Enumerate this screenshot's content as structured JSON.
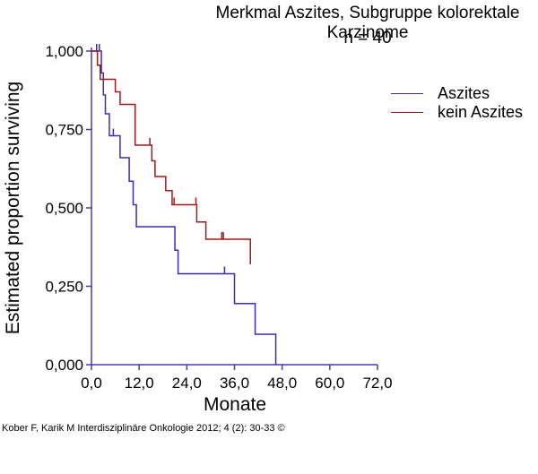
{
  "chart_data": {
    "type": "line",
    "subtype": "kaplan-meier step",
    "title": "Merkmal Aszites, Subgruppe kolorektale Karzinome",
    "subtitle": "n = 40",
    "xlabel": "Monate",
    "ylabel": "Estimated proportion surviving",
    "xlim": [
      0,
      72
    ],
    "ylim": [
      0,
      1
    ],
    "x_ticks": [
      "0,0",
      "12,0",
      "24,0",
      "36,0",
      "48,0",
      "60,0",
      "72,0"
    ],
    "y_ticks": [
      "0,000",
      "0,250",
      "0,500",
      "0,750",
      "1,000"
    ],
    "grid": false,
    "legend_position": "upper right",
    "series": [
      {
        "name": "Aszites",
        "color": "#3a2fb0",
        "steps": [
          [
            0,
            1.0
          ],
          [
            2.5,
            0.93
          ],
          [
            3.0,
            0.86
          ],
          [
            3.5,
            0.8
          ],
          [
            4.5,
            0.73
          ],
          [
            7.2,
            0.66
          ],
          [
            9.5,
            0.585
          ],
          [
            10.5,
            0.51
          ],
          [
            11.3,
            0.44
          ],
          [
            21.0,
            0.365
          ],
          [
            21.8,
            0.29
          ],
          [
            36.0,
            0.195
          ],
          [
            41.2,
            0.097
          ],
          [
            46.4,
            0.0
          ]
        ],
        "censored": [
          [
            1.3,
            1.0
          ],
          [
            2.0,
            1.0
          ],
          [
            5.5,
            0.73
          ],
          [
            33.5,
            0.29
          ]
        ]
      },
      {
        "name": "kein Aszites",
        "color": "#a01818",
        "steps": [
          [
            0,
            1.0
          ],
          [
            1.5,
            0.955
          ],
          [
            2.2,
            0.91
          ],
          [
            6.0,
            0.87
          ],
          [
            7.2,
            0.83
          ],
          [
            11.0,
            0.7
          ],
          [
            15.2,
            0.65
          ],
          [
            16.0,
            0.6
          ],
          [
            18.7,
            0.555
          ],
          [
            20.3,
            0.51
          ],
          [
            26.5,
            0.455
          ],
          [
            28.8,
            0.4
          ],
          [
            40.0,
            0.32
          ]
        ],
        "censored": [
          [
            14.7,
            0.7
          ],
          [
            20.8,
            0.51
          ],
          [
            26.3,
            0.51
          ],
          [
            32.8,
            0.4
          ],
          [
            33.2,
            0.4
          ]
        ]
      }
    ]
  },
  "legend": {
    "items": [
      {
        "label": "Aszites",
        "color": "#3a2fb0"
      },
      {
        "label": "kein Aszites",
        "color": "#a01818"
      }
    ]
  },
  "footer": "Kober F, Karik M Interdisziplinäre Onkologie 2012; 4 (2): 30-33 ©"
}
